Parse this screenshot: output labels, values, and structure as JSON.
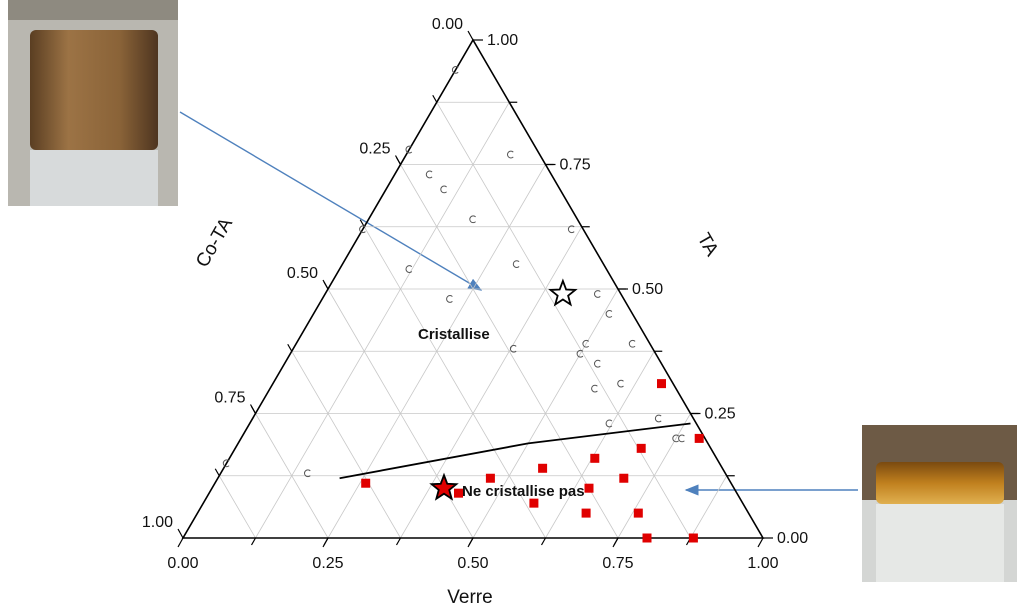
{
  "chart_data": {
    "type": "ternary",
    "axes": [
      {
        "name": "Verre",
        "ticks": [
          {
            "value": 0,
            "label": "0.00"
          },
          {
            "value": 0.25,
            "label": "0.25"
          },
          {
            "value": 0.5,
            "label": "0.50"
          },
          {
            "value": 0.75,
            "label": "0.75"
          },
          {
            "value": 1,
            "label": "1.00"
          }
        ]
      },
      {
        "name": "TA",
        "ticks": [
          {
            "value": 0,
            "label": "0.00"
          },
          {
            "value": 0.25,
            "label": "0.25"
          },
          {
            "value": 0.5,
            "label": "0.50"
          },
          {
            "value": 0.75,
            "label": "0.75"
          },
          {
            "value": 1,
            "label": "1.00"
          }
        ]
      },
      {
        "name": "Co-TA",
        "ticks": [
          {
            "value": 0,
            "label": "0.00"
          },
          {
            "value": 0.25,
            "label": "0.25"
          },
          {
            "value": 0.5,
            "label": "0.50"
          },
          {
            "value": 0.75,
            "label": "0.75"
          },
          {
            "value": 1,
            "label": "1.00"
          }
        ]
      }
    ],
    "gridlines": [
      0.125,
      0.25,
      0.375,
      0.5,
      0.625,
      0.75,
      0.875
    ],
    "series": [
      {
        "shape": "arc",
        "color": "#555555",
        "verre": [
          0.0,
          0.0,
          0.18,
          0.06,
          0.1,
          0.18,
          0.0,
          0.36,
          0.12,
          0.3,
          0.22,
          0.47,
          0.51,
          0.38,
          0.58,
          0.5,
          0.5,
          0.54,
          0.6,
          0.56,
          0.62,
          0.7,
          0.76,
          0.75,
          0.0,
          0.15
        ],
        "ta": [
          0.94,
          0.78,
          0.77,
          0.73,
          0.7,
          0.64,
          0.62,
          0.62,
          0.54,
          0.55,
          0.48,
          0.49,
          0.45,
          0.38,
          0.39,
          0.39,
          0.37,
          0.35,
          0.31,
          0.3,
          0.23,
          0.24,
          0.2,
          0.2,
          0.15,
          0.13
        ],
        "co_ta": [
          0.06,
          0.22,
          0.05,
          0.21,
          0.2,
          0.18,
          0.38,
          0.02,
          0.34,
          0.15,
          0.3,
          0.04,
          0.04,
          0.24,
          0.03,
          0.11,
          0.13,
          0.11,
          0.09,
          0.14,
          0.15,
          0.06,
          0.04,
          0.05,
          0.85,
          0.72
        ]
      },
      {
        "shape": "square",
        "color": "#e00000",
        "verre": [
          0.67,
          0.79,
          0.7,
          0.63,
          0.55,
          0.47,
          0.7,
          0.26,
          0.43,
          0.65,
          0.57,
          0.76,
          0.67,
          0.8,
          0.88
        ],
        "ta": [
          0.31,
          0.2,
          0.18,
          0.16,
          0.14,
          0.12,
          0.12,
          0.11,
          0.09,
          0.1,
          0.07,
          0.05,
          0.05,
          0.0,
          0.0
        ],
        "co_ta": [
          0.02,
          0.01,
          0.12,
          0.21,
          0.31,
          0.41,
          0.18,
          0.63,
          0.48,
          0.25,
          0.36,
          0.19,
          0.28,
          0.2,
          0.12
        ]
      },
      {
        "shape": "star",
        "color": "#ffffff",
        "verre": [
          0.41
        ],
        "ta": [
          0.49
        ],
        "co_ta": [
          0.1
        ]
      },
      {
        "shape": "star",
        "color": "#e00000",
        "verre": [
          0.4
        ],
        "ta": [
          0.1
        ],
        "co_ta": [
          0.5
        ]
      }
    ],
    "boundary": {
      "verre": [
        0.21,
        0.5,
        0.76
      ],
      "ta": [
        0.12,
        0.19,
        0.23
      ],
      "co_ta": [
        0.67,
        0.31,
        0.01
      ]
    },
    "annotations": [
      "Cristallise",
      "Ne cristallise pas"
    ]
  }
}
